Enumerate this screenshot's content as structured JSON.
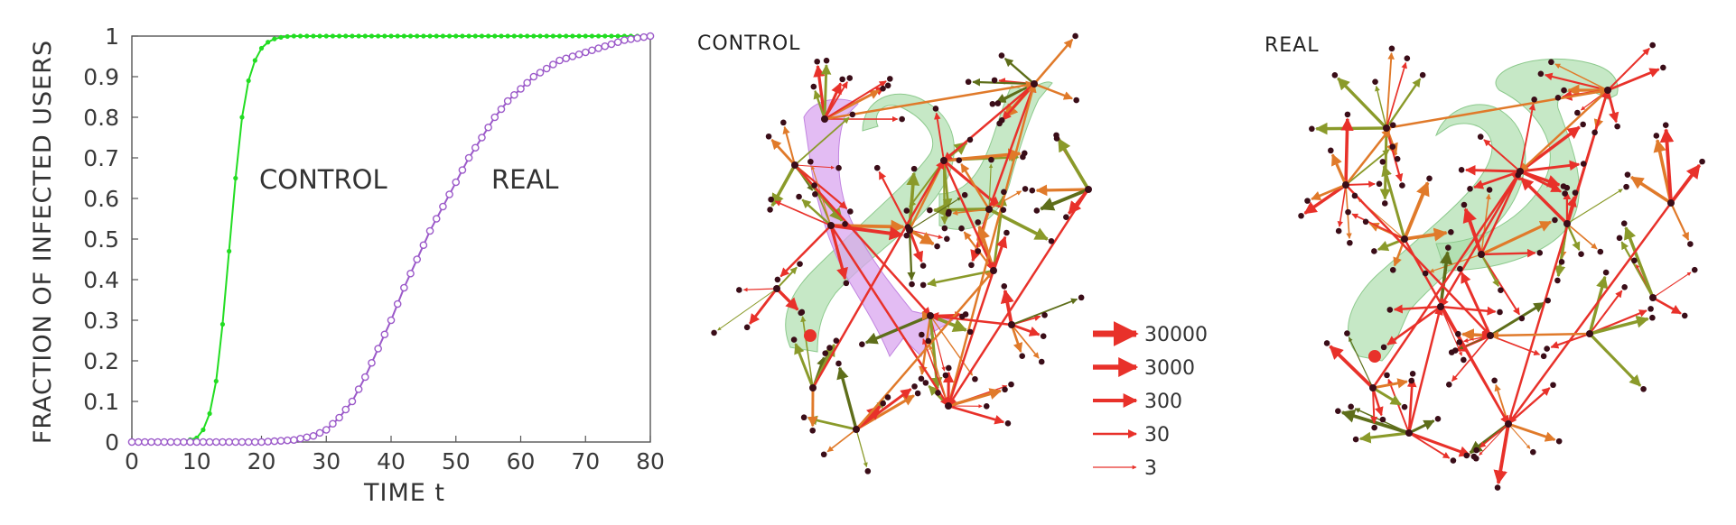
{
  "chart_data": [
    {
      "type": "line",
      "xlabel": "TIME t",
      "ylabel": "FRACTION OF INFECTED USERS",
      "xlim": [
        0,
        80
      ],
      "ylim": [
        0,
        1
      ],
      "xticks": [
        0,
        10,
        20,
        30,
        40,
        50,
        60,
        70,
        80
      ],
      "yticks": [
        0,
        0.1,
        0.2,
        0.3,
        0.4,
        0.5,
        0.6,
        0.7,
        0.8,
        0.9,
        1
      ],
      "ytick_labels": [
        "0",
        "0.1",
        "0.2",
        "0.3",
        "0.4",
        "0.5",
        "0.6",
        "0.7",
        "0.8",
        "0.9",
        "1"
      ],
      "series": [
        {
          "name": "CONTROL",
          "color": "#22dd22",
          "marker": "dot",
          "x": [
            0,
            2,
            4,
            6,
            8,
            10,
            11,
            12,
            13,
            14,
            15,
            16,
            17,
            18,
            19,
            20,
            21,
            22,
            23,
            24,
            25,
            26,
            28,
            30,
            35,
            40,
            50,
            60,
            70,
            80
          ],
          "y": [
            0,
            0,
            0,
            0,
            0.002,
            0.01,
            0.03,
            0.07,
            0.15,
            0.29,
            0.47,
            0.65,
            0.8,
            0.89,
            0.94,
            0.97,
            0.985,
            0.993,
            0.997,
            0.999,
            1,
            1,
            1,
            1,
            1,
            1,
            1,
            1,
            1,
            1
          ]
        },
        {
          "name": "REAL",
          "color": "#9b59c9",
          "marker": "circle",
          "x": [
            0,
            10,
            20,
            25,
            28,
            30,
            32,
            34,
            36,
            38,
            40,
            42,
            44,
            46,
            48,
            50,
            52,
            54,
            56,
            58,
            60,
            62,
            64,
            66,
            68,
            70,
            72,
            74,
            76,
            78,
            80
          ],
          "y": [
            0,
            0,
            0,
            0.005,
            0.015,
            0.03,
            0.06,
            0.1,
            0.16,
            0.23,
            0.3,
            0.38,
            0.45,
            0.52,
            0.58,
            0.64,
            0.7,
            0.75,
            0.8,
            0.84,
            0.87,
            0.9,
            0.92,
            0.94,
            0.95,
            0.96,
            0.97,
            0.98,
            0.99,
            0.995,
            1
          ]
        }
      ],
      "annotations": [
        "CONTROL",
        "REAL"
      ],
      "grid": false
    },
    {
      "type": "network",
      "title": "CONTROL",
      "legend_values": [
        "30000",
        "3000",
        "300",
        "30",
        "3"
      ],
      "highlight_colors": [
        "#a8dba8",
        "#d9a5ef"
      ]
    },
    {
      "type": "network",
      "title": "REAL",
      "highlight_colors": [
        "#a8dba8"
      ]
    }
  ],
  "colors": {
    "edge_red": "#e8312a",
    "edge_orange": "#e07a2a",
    "edge_olive": "#8a9a2a",
    "edge_darkolive": "#5e6e1a",
    "node": "#3a0d18"
  }
}
